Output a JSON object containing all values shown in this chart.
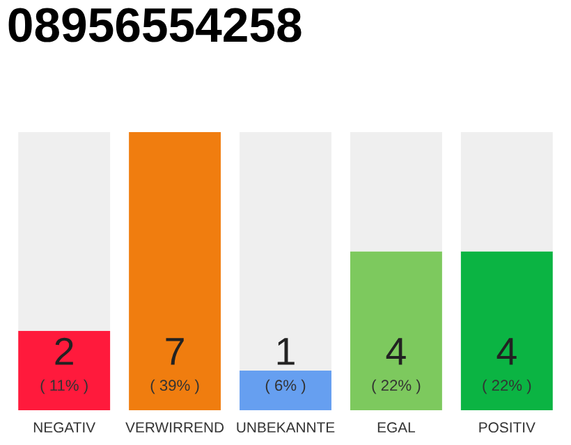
{
  "chart_data": {
    "type": "bar",
    "title": "08956554258",
    "stacked": true,
    "categories": [
      "NEGATIV",
      "VERWIRREND",
      "UNBEKANNTE",
      "EGAL",
      "POSITIV"
    ],
    "ylim": [
      0,
      7
    ],
    "series": [
      {
        "colors": [
          "#ff1a3c",
          "#f07d0f",
          "#669ff0",
          "#7dc95e",
          "#0bb443"
        ],
        "values": [
          2,
          7,
          1,
          4,
          4
        ],
        "value_labels": [
          "2",
          "7",
          "1",
          "4",
          "4"
        ]
      },
      {
        "color": "#efefef",
        "values": [
          5,
          0,
          6,
          3,
          3
        ]
      }
    ],
    "annotations": [
      "( 11% )",
      "( 39% )",
      "( 6% )",
      "( 22% )",
      "( 22% )"
    ],
    "grid": false,
    "legend": false
  }
}
